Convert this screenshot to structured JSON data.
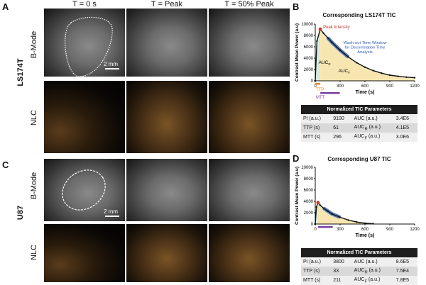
{
  "panels": {
    "A": "A",
    "B": "B",
    "C": "C",
    "D": "D"
  },
  "column_titles": [
    "T = 0 s",
    "T = Peak",
    "T = 50% Peak"
  ],
  "row_labels": {
    "bmode": "B-Mode",
    "nlc": "NLC"
  },
  "cell_lines": {
    "top": "LS174T",
    "bottom": "U87"
  },
  "scale_bar": "2 mm",
  "chart_data": [
    {
      "type": "line",
      "title": "Corresponding LS174T TIC",
      "xlabel": "Time (s)",
      "ylabel": "Contrast Mean Power (a.u)",
      "xlim": [
        0,
        1200
      ],
      "ylim": [
        0,
        10000
      ],
      "xticks": [
        0,
        300,
        600,
        900,
        1200
      ],
      "yticks": [
        0,
        2000,
        4000,
        6000,
        8000,
        10000
      ],
      "x": [
        0,
        20,
        61,
        100,
        150,
        200,
        300,
        400,
        500,
        600,
        700,
        800,
        900,
        1000,
        1100,
        1200
      ],
      "y": [
        0,
        7000,
        9100,
        8400,
        7600,
        6800,
        5400,
        4200,
        3200,
        2400,
        1800,
        1350,
        1000,
        800,
        650,
        550
      ],
      "annotations": {
        "peak": "Peak Intensity",
        "washout": "Wash-out Time Window for Decorrelation Time Analysis",
        "auc_r": "AUC",
        "auc_r_sub": "R",
        "auc_f": "AUC",
        "auc_f_sub": "F",
        "ttp": "TTP",
        "mtt": "MTT"
      },
      "colors": {
        "fill_r": "#d6eadf",
        "fill_f": "#f7e6b0",
        "washout": "#2f5fb0",
        "peak": "#c0392b",
        "ttp_bar": "#e08a2c",
        "mtt_bar": "#7b3fa0"
      }
    },
    {
      "type": "line",
      "title": "Corresponding U87 TIC",
      "xlabel": "Time (s)",
      "ylabel": "Contrast Mean Power (a.u)",
      "xlim": [
        0,
        1200
      ],
      "ylim": [
        0,
        10000
      ],
      "xticks": [
        0,
        300,
        600,
        900,
        1200
      ],
      "yticks": [
        0,
        2000,
        4000,
        6000,
        8000,
        10000
      ],
      "x": [
        0,
        15,
        33,
        60,
        100,
        150,
        200,
        300,
        400,
        500,
        600,
        700
      ],
      "y": [
        0,
        3000,
        3800,
        3300,
        2800,
        2300,
        1800,
        1200,
        700,
        350,
        150,
        50
      ],
      "annotations": {},
      "colors": {
        "fill_r": "#d6eadf",
        "fill_f": "#f7e6b0",
        "washout": "#2f5fb0",
        "peak": "#c0392b",
        "mtt_bar": "#7b3fa0"
      }
    }
  ],
  "tables": {
    "top": {
      "header": "Normalized TIC Parameters",
      "rows": [
        [
          "PI (a.u.)",
          "9100",
          "AUC (a.u.)",
          "",
          "3.4E6"
        ],
        [
          "TTP (s)",
          "61",
          "AUC",
          "R",
          " (a.u.)",
          "4.1E5"
        ],
        [
          "MTT (s)",
          "296",
          "AUC",
          "F",
          " (a.u.)",
          "3.0E6"
        ]
      ]
    },
    "bottom": {
      "header": "Normalized TIC Parameters",
      "rows": [
        [
          "PI (a.u.)",
          "3800",
          "AUC (a.u.)",
          "",
          "8.6E5"
        ],
        [
          "TTP (s)",
          "33",
          "AUC",
          "R",
          " (a.u.)",
          "7.5E4"
        ],
        [
          "MTT (s)",
          "211",
          "AUC",
          "F",
          " (a.u.)",
          "7.8E5"
        ]
      ]
    }
  }
}
